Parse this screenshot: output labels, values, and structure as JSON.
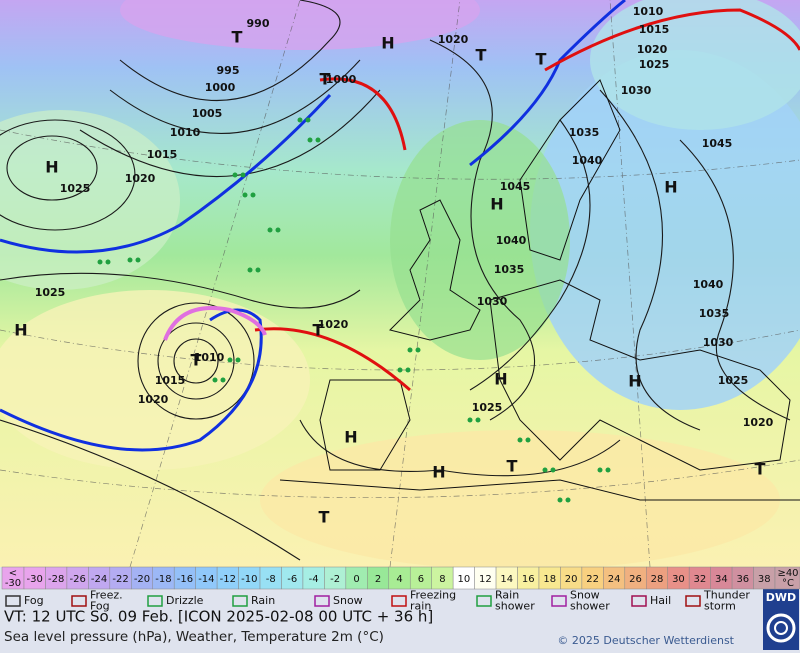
{
  "map": {
    "pressure_labels": [
      "990",
      "995",
      "1000",
      "1005",
      "1010",
      "1015",
      "1020",
      "1025",
      "1000",
      "1020",
      "1010",
      "1015",
      "1020",
      "1025",
      "1030",
      "1035",
      "1040",
      "1045",
      "1045",
      "1040",
      "1035",
      "1030",
      "1040",
      "1035",
      "1030",
      "1025",
      "1020",
      "1025",
      "1020",
      "1010",
      "1015",
      "1020",
      "1025"
    ],
    "centers": [
      "H",
      "H",
      "H",
      "T",
      "T",
      "T",
      "H",
      "H",
      "H",
      "H",
      "T",
      "T",
      "H",
      "H",
      "T",
      "T",
      "T",
      "T"
    ]
  },
  "temperature_scale": {
    "low_label": [
      "<",
      "-30"
    ],
    "values": [
      -30,
      -28,
      -26,
      -24,
      -22,
      -20,
      -18,
      -16,
      -14,
      -12,
      -10,
      -8,
      -6,
      -4,
      -2,
      0,
      2,
      4,
      6,
      8,
      10,
      12,
      14,
      16,
      18,
      20,
      22,
      24,
      26,
      28,
      30,
      32,
      34,
      36,
      38
    ],
    "colors": [
      "#e8a4ec",
      "#dca4ec",
      "#cfa6ee",
      "#c0a8f0",
      "#b4acf2",
      "#a4b2f4",
      "#9cb8f6",
      "#94c0f8",
      "#90c8fa",
      "#90d0fa",
      "#92d8f8",
      "#98e0f4",
      "#a0e8ee",
      "#a6eee4",
      "#aef0d4",
      "#a0ecb0",
      "#98e898",
      "#a8ec94",
      "#b8f098",
      "#ccf4a0",
      "#ffffff",
      "#fffff0",
      "#fcf8c0",
      "#f8f0a0",
      "#f8e890",
      "#f8dc88",
      "#f8d080",
      "#f4c080",
      "#f0b080",
      "#eca080",
      "#e89088",
      "#e08890",
      "#d88898",
      "#d090a0",
      "#c8a0a8"
    ],
    "high_label": [
      "≥40",
      "°C"
    ]
  },
  "weather_legend": [
    {
      "label": [
        "Fog"
      ]
    },
    {
      "label": [
        "Freez.",
        "Fog"
      ]
    },
    {
      "label": [
        "Drizzle"
      ]
    },
    {
      "label": [
        "Rain"
      ]
    },
    {
      "label": [
        "Snow"
      ]
    },
    {
      "label": [
        "Freezing",
        "rain"
      ]
    },
    {
      "label": [
        "Rain",
        "shower"
      ]
    },
    {
      "label": [
        "Snow",
        "shower"
      ]
    },
    {
      "label": [
        "Hail"
      ]
    },
    {
      "label": [
        "Thunder",
        "storm"
      ]
    }
  ],
  "footer": {
    "valid_time": "VT: 12 UTC So.  09 Feb. [ICON 2025-02-08  00 UTC + 36 h]",
    "description": "Sea level pressure (hPa), Weather, Temperature 2m (°C)",
    "copyright": "© 2025 Deutscher Wetterdienst",
    "logo": "DWD"
  }
}
